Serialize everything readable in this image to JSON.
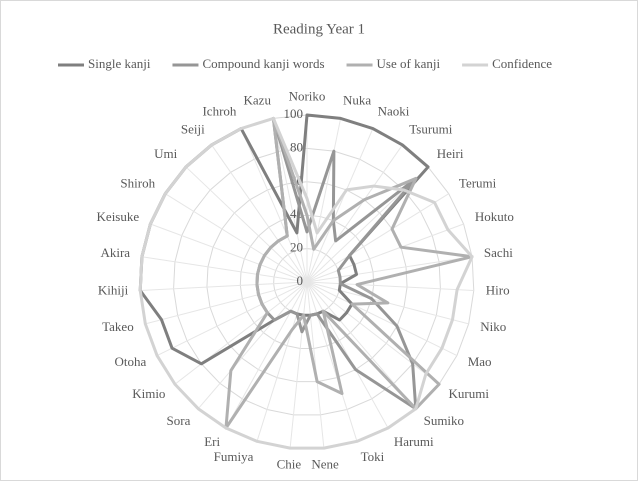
{
  "chart_data": {
    "type": "radar",
    "title": "Reading Year 1",
    "categories": [
      "Noriko",
      "Nuka",
      "Naoki",
      "Tsurumi",
      "Heiri",
      "Terumi",
      "Hokuto",
      "Sachi",
      "Hiro",
      "Niko",
      "Mao",
      "Kurumi",
      "Sumiko",
      "Harumi",
      "Toki",
      "Nene",
      "Chie",
      "Fumiya",
      "Eri",
      "Sora",
      "Kimio",
      "Otoha",
      "Takeo",
      "Kihiji",
      "Akira",
      "Keisuke",
      "Shiroh",
      "Umi",
      "Seiji",
      "Ichroh",
      "Kazu"
    ],
    "series": [
      {
        "name": "Single kanji",
        "color": "#7f7f7f",
        "values": [
          100,
          100,
          100,
          100,
          100,
          30,
          30,
          30,
          20,
          20,
          30,
          30,
          30,
          20,
          20,
          20,
          20,
          20,
          20,
          30,
          80,
          90,
          90,
          100,
          100,
          100,
          100,
          100,
          100,
          100,
          30
        ]
      },
      {
        "name": "Compound kanji words",
        "color": "#969696",
        "values": [
          30,
          80,
          40,
          30,
          90,
          30,
          20,
          20,
          20,
          40,
          60,
          80,
          100,
          60,
          20,
          20,
          30,
          20,
          20,
          30,
          30,
          30,
          30,
          30,
          30,
          30,
          30,
          30,
          30,
          30,
          100
        ]
      },
      {
        "name": "Use of kanji",
        "color": "#b0b0b0",
        "values": [
          40,
          20,
          40,
          60,
          90,
          60,
          60,
          100,
          30,
          50,
          30,
          100,
          100,
          20,
          70,
          60,
          20,
          30,
          100,
          70,
          30,
          30,
          30,
          30,
          30,
          30,
          30,
          30,
          30,
          30,
          100
        ]
      },
      {
        "name": "Confidence",
        "color": "#d3d3d3",
        "values": [
          50,
          30,
          60,
          70,
          80,
          90,
          90,
          100,
          90,
          90,
          90,
          90,
          100,
          100,
          100,
          100,
          100,
          100,
          100,
          100,
          100,
          100,
          100,
          100,
          100,
          100,
          100,
          100,
          100,
          100,
          100
        ]
      }
    ],
    "ylim": [
      0,
      100
    ],
    "yticks": [
      0,
      20,
      40,
      60,
      80,
      100
    ],
    "grid": true,
    "legend": "top"
  }
}
